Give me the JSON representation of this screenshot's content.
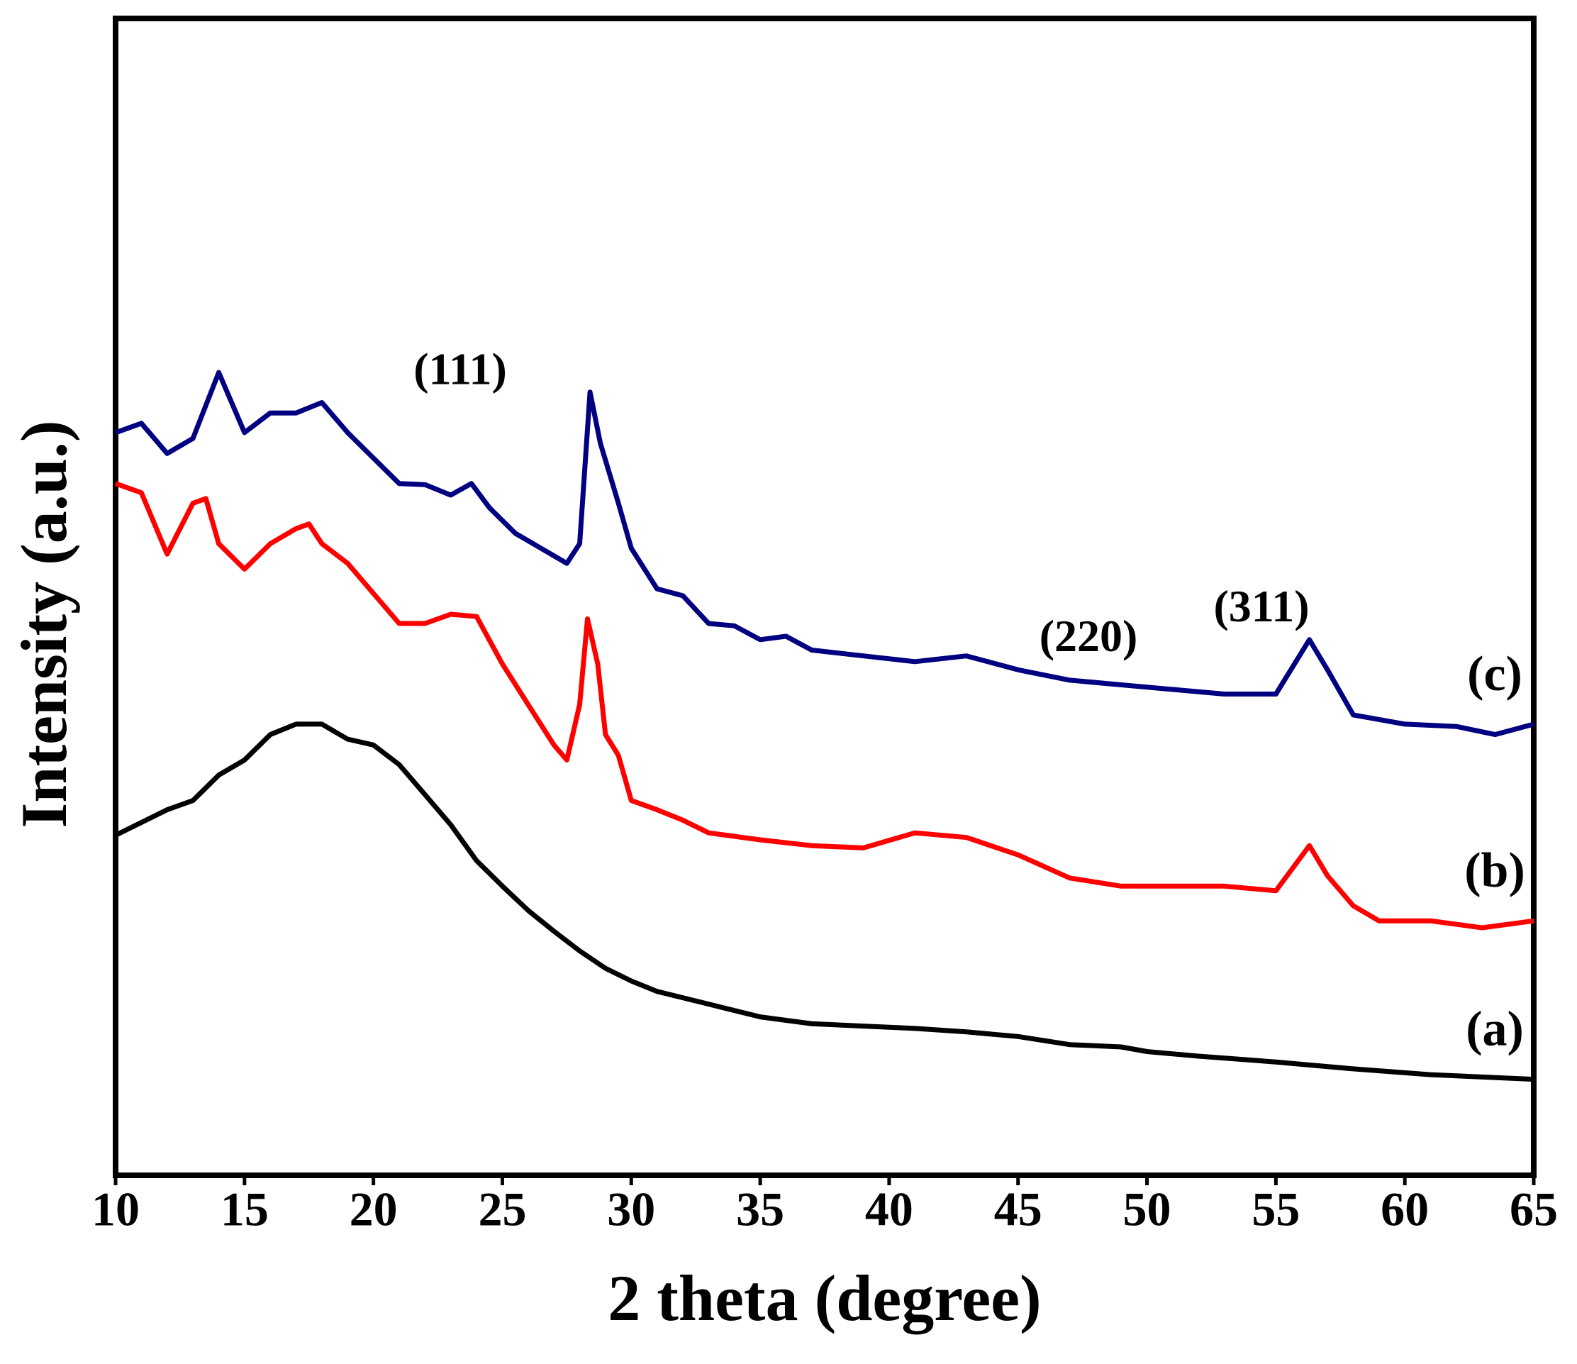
{
  "chart_data": {
    "type": "line",
    "xlabel": "2 theta (degree)",
    "ylabel": "Intensity (a.u.)",
    "xlim": [
      10,
      65
    ],
    "xticks": [
      10,
      15,
      20,
      25,
      30,
      35,
      40,
      45,
      50,
      55,
      60,
      65
    ],
    "ylim": [
      0,
      100
    ],
    "annotations": [
      "(111)",
      "(220)",
      "(311)"
    ],
    "series": [
      {
        "name": "(a)",
        "color": "#000000",
        "x": [
          10,
          12,
          13,
          14,
          15,
          16,
          17,
          18,
          19,
          20,
          21,
          22,
          23,
          24,
          25,
          26,
          27,
          28,
          29,
          30,
          31,
          33,
          35,
          37,
          39,
          41,
          43,
          45,
          47,
          49,
          50,
          52,
          55,
          58,
          61,
          65
        ],
        "values": [
          29.4,
          31.6,
          32.4,
          34.6,
          35.9,
          38.1,
          39,
          39,
          37.7,
          37.2,
          35.5,
          32.9,
          30.3,
          27.2,
          25,
          22.9,
          21.1,
          19.4,
          17.9,
          16.8,
          15.9,
          14.8,
          13.7,
          13.1,
          12.9,
          12.7,
          12.4,
          12,
          11.3,
          11.1,
          10.7,
          10.3,
          9.8,
          9.2,
          8.7,
          8.3
        ]
      },
      {
        "name": "(b)",
        "color": "#ff0000",
        "x": [
          10,
          11,
          12,
          13,
          13.5,
          14,
          15,
          16,
          17,
          17.5,
          18,
          19,
          20,
          21,
          22,
          23,
          24,
          25,
          26,
          27,
          27.5,
          28,
          28.3,
          28.7,
          29,
          29.5,
          30,
          31,
          32,
          33,
          35,
          37,
          39,
          41,
          43,
          45,
          47,
          49,
          51,
          53,
          55,
          56.3,
          57,
          58,
          59,
          61,
          63,
          65
        ],
        "values": [
          59.8,
          59,
          53.7,
          58.1,
          58.5,
          54.6,
          52.4,
          54.6,
          55.9,
          56.3,
          54.6,
          52.9,
          50.3,
          47.7,
          47.7,
          48.5,
          48.3,
          44.2,
          40.7,
          37.2,
          35.9,
          40.7,
          48.1,
          44.2,
          38.1,
          36.3,
          32.4,
          31.6,
          30.7,
          29.6,
          29,
          28.5,
          28.3,
          29.6,
          29.2,
          27.7,
          25.7,
          25,
          25,
          25,
          24.6,
          28.5,
          25.9,
          23.3,
          22,
          22,
          21.4,
          22
        ]
      },
      {
        "name": "(c)",
        "color": "#000080",
        "x": [
          10,
          11,
          12,
          13,
          14,
          15,
          16,
          17,
          18,
          19,
          20,
          21,
          22,
          23,
          23.8,
          24.5,
          25.5,
          26.5,
          27.5,
          28,
          28.4,
          28.8,
          29.5,
          30,
          31,
          32,
          33,
          34,
          35,
          36,
          37,
          39,
          41,
          43,
          45,
          47,
          49,
          51,
          53,
          55,
          56.3,
          57,
          58,
          60,
          62,
          63.5,
          65
        ],
        "values": [
          64.2,
          65,
          62.4,
          63.7,
          69.4,
          64.2,
          65.9,
          65.9,
          66.8,
          64.2,
          62,
          59.8,
          59.7,
          58.8,
          59.8,
          57.7,
          55.5,
          54.2,
          52.9,
          54.6,
          67.7,
          63.3,
          58.1,
          54.2,
          50.7,
          50.1,
          47.7,
          47.5,
          46.3,
          46.6,
          45.4,
          44.9,
          44.4,
          44.9,
          43.7,
          42.8,
          42.4,
          42,
          41.6,
          41.6,
          46.3,
          43.7,
          39.8,
          39,
          38.8,
          38.1,
          39
        ]
      }
    ]
  }
}
